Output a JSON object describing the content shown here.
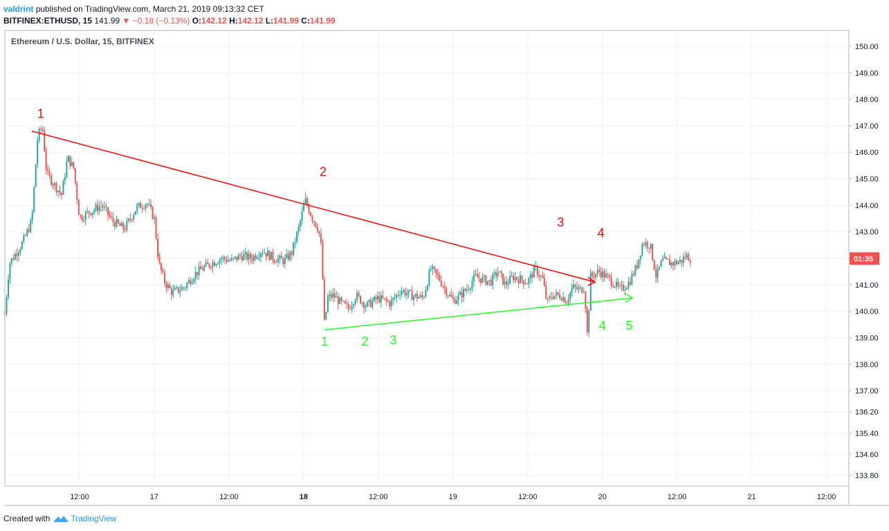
{
  "header": {
    "user": "valdrint",
    "published_text": "published on TradingView.com, March 21, 2019 09:13:32 CET",
    "symbol": "BITFINEX:ETHUSD, 15",
    "last": "141.99",
    "change": "−0.18 (−0.13%)",
    "o_label": "O:",
    "o_val": "142.12",
    "h_label": "H:",
    "h_val": "142.12",
    "l_label": "L:",
    "l_val": "141.99",
    "c_label": "C:",
    "c_val": "141.99"
  },
  "footer": {
    "created_with": "Created with",
    "brand": "TradingView"
  },
  "colors": {
    "up": "#26a69a",
    "down": "#ef5350",
    "resistance": "#ff0000",
    "support": "#22ff22",
    "grid": "#eef0f3",
    "axis_text": "#131722",
    "price_tag": "#ef5350"
  },
  "chart_data": {
    "type": "candlestick",
    "title": "Ethereum / U.S. Dollar, 15, BITFINEX",
    "xlabel": "",
    "ylabel": "",
    "grid": true,
    "ylim": [
      133.4,
      150.6
    ],
    "y_ticks": [
      "150.00",
      "149.00",
      "148.00",
      "147.00",
      "146.00",
      "145.00",
      "144.00",
      "143.00",
      "142.00",
      "141.00",
      "140.00",
      "139.00",
      "138.00",
      "137.00",
      "136.20",
      "135.40",
      "134.60",
      "133.80"
    ],
    "x_ticks": [
      "12:00",
      "17",
      "12:00",
      "18",
      "12:00",
      "19",
      "12:00",
      "20",
      "12:00",
      "21",
      "12:00"
    ],
    "x_bold_ticks": [
      "18"
    ],
    "price_tag": "01:35",
    "last_price": 141.99,
    "price_series": [
      {
        "t": 0.0,
        "p": 139.9
      },
      {
        "t": 0.03,
        "p": 141.8
      },
      {
        "t": 0.12,
        "p": 142.6
      },
      {
        "t": 0.18,
        "p": 143.4
      },
      {
        "t": 0.22,
        "p": 146.6
      },
      {
        "t": 0.25,
        "p": 147.0
      },
      {
        "t": 0.28,
        "p": 145.2
      },
      {
        "t": 0.34,
        "p": 144.7
      },
      {
        "t": 0.38,
        "p": 144.4
      },
      {
        "t": 0.42,
        "p": 145.8
      },
      {
        "t": 0.46,
        "p": 145.4
      },
      {
        "t": 0.5,
        "p": 143.5
      },
      {
        "t": 0.55,
        "p": 143.7
      },
      {
        "t": 0.65,
        "p": 144.0
      },
      {
        "t": 0.72,
        "p": 143.4
      },
      {
        "t": 0.8,
        "p": 143.1
      },
      {
        "t": 0.88,
        "p": 143.9
      },
      {
        "t": 0.95,
        "p": 144.1
      },
      {
        "t": 1.0,
        "p": 143.5
      },
      {
        "t": 1.03,
        "p": 141.8
      },
      {
        "t": 1.07,
        "p": 141.1
      },
      {
        "t": 1.12,
        "p": 140.7
      },
      {
        "t": 1.2,
        "p": 140.9
      },
      {
        "t": 1.27,
        "p": 141.4
      },
      {
        "t": 1.32,
        "p": 141.6
      },
      {
        "t": 1.38,
        "p": 141.8
      },
      {
        "t": 1.45,
        "p": 142.0
      },
      {
        "t": 1.52,
        "p": 141.9
      },
      {
        "t": 1.58,
        "p": 142.1
      },
      {
        "t": 1.65,
        "p": 142.0
      },
      {
        "t": 1.72,
        "p": 142.3
      },
      {
        "t": 1.8,
        "p": 142.0
      },
      {
        "t": 1.87,
        "p": 141.9
      },
      {
        "t": 1.92,
        "p": 142.2
      },
      {
        "t": 1.97,
        "p": 143.2
      },
      {
        "t": 2.01,
        "p": 144.2
      },
      {
        "t": 2.06,
        "p": 143.5
      },
      {
        "t": 2.1,
        "p": 143.1
      },
      {
        "t": 2.12,
        "p": 142.3
      },
      {
        "t": 2.14,
        "p": 139.4
      },
      {
        "t": 2.16,
        "p": 140.5
      },
      {
        "t": 2.2,
        "p": 140.6
      },
      {
        "t": 2.25,
        "p": 140.3
      },
      {
        "t": 2.3,
        "p": 140.1
      },
      {
        "t": 2.35,
        "p": 140.6
      },
      {
        "t": 2.42,
        "p": 140.2
      },
      {
        "t": 2.5,
        "p": 140.5
      },
      {
        "t": 2.58,
        "p": 140.3
      },
      {
        "t": 2.65,
        "p": 140.8
      },
      {
        "t": 2.72,
        "p": 140.6
      },
      {
        "t": 2.8,
        "p": 140.5
      },
      {
        "t": 2.85,
        "p": 141.6
      },
      {
        "t": 2.9,
        "p": 141.3
      },
      {
        "t": 2.95,
        "p": 140.8
      },
      {
        "t": 3.0,
        "p": 140.4
      },
      {
        "t": 3.05,
        "p": 140.6
      },
      {
        "t": 3.1,
        "p": 140.9
      },
      {
        "t": 3.15,
        "p": 141.3
      },
      {
        "t": 3.2,
        "p": 141.2
      },
      {
        "t": 3.25,
        "p": 141.1
      },
      {
        "t": 3.3,
        "p": 141.5
      },
      {
        "t": 3.35,
        "p": 141.0
      },
      {
        "t": 3.4,
        "p": 141.3
      },
      {
        "t": 3.45,
        "p": 141.2
      },
      {
        "t": 3.5,
        "p": 141.1
      },
      {
        "t": 3.55,
        "p": 141.6
      },
      {
        "t": 3.6,
        "p": 141.2
      },
      {
        "t": 3.63,
        "p": 140.3
      },
      {
        "t": 3.66,
        "p": 140.6
      },
      {
        "t": 3.72,
        "p": 140.6
      },
      {
        "t": 3.76,
        "p": 140.4
      },
      {
        "t": 3.8,
        "p": 140.9
      },
      {
        "t": 3.85,
        "p": 140.8
      },
      {
        "t": 3.88,
        "p": 140.9
      },
      {
        "t": 3.9,
        "p": 139.0
      },
      {
        "t": 3.92,
        "p": 141.3
      },
      {
        "t": 3.98,
        "p": 141.5
      },
      {
        "t": 4.05,
        "p": 141.2
      },
      {
        "t": 4.12,
        "p": 140.8
      },
      {
        "t": 4.18,
        "p": 141.1
      },
      {
        "t": 4.23,
        "p": 141.7
      },
      {
        "t": 4.27,
        "p": 142.6
      },
      {
        "t": 4.32,
        "p": 142.5
      },
      {
        "t": 4.36,
        "p": 141.3
      },
      {
        "t": 4.4,
        "p": 141.9
      },
      {
        "t": 4.47,
        "p": 141.8
      },
      {
        "t": 4.53,
        "p": 141.9
      },
      {
        "t": 4.56,
        "p": 142.1
      },
      {
        "t": 4.59,
        "p": 141.99
      }
    ],
    "annotations": {
      "resistance": {
        "from": {
          "t": 0.18,
          "p": 146.8
        },
        "to": {
          "t": 3.95,
          "p": 141.1
        },
        "labels": [
          "1",
          "2",
          "3",
          "4"
        ]
      },
      "support": {
        "from": {
          "t": 2.14,
          "p": 139.3
        },
        "to": {
          "t": 4.2,
          "p": 140.5
        },
        "labels": [
          "1",
          "2",
          "3",
          "4",
          "5"
        ]
      }
    }
  }
}
